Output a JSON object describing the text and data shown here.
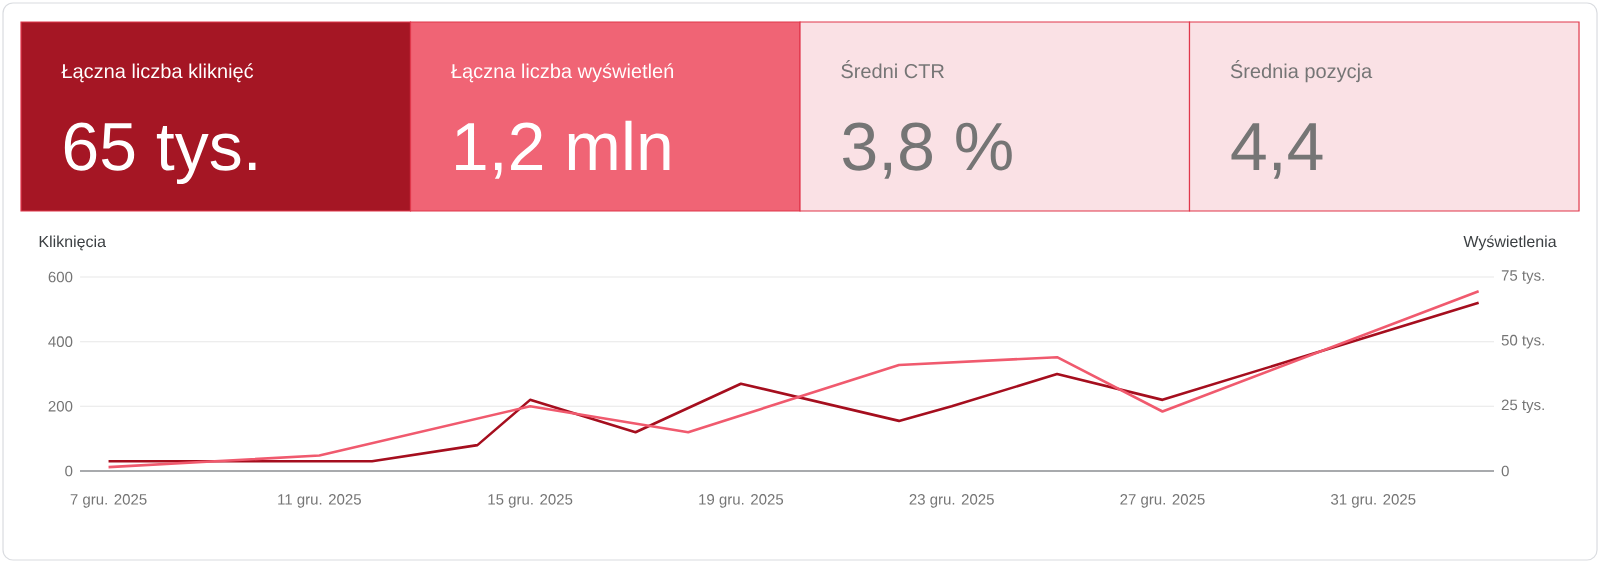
{
  "chart_data": [
    {
      "type": "other",
      "categories": [
        "Łączna liczba kliknięć",
        "Łączna liczba wyświetleń",
        "Średni CTR",
        "Średnia pozycja"
      ],
      "value_labels": [
        "65 tys.",
        "1,2 mln",
        "3,8 %",
        "4,4"
      ],
      "colors": [
        "#a51624",
        "#f06475",
        "#fae1e5",
        "#fae1e5"
      ]
    },
    {
      "type": "line",
      "ylabel": "Kliknięcia",
      "y2label": "Wyświetlenia",
      "xlim": [
        "2025-12-06T11:00",
        "2026-01-02T07:00"
      ],
      "xticks": [
        {
          "value": "2025-12-07",
          "label": "7 gru. 2025"
        },
        {
          "value": "2025-12-11",
          "label": "11 gru. 2025"
        },
        {
          "value": "2025-12-15",
          "label": "15 gru. 2025"
        },
        {
          "value": "2025-12-19",
          "label": "19 gru. 2025"
        },
        {
          "value": "2025-12-23",
          "label": "23 gru. 2025"
        },
        {
          "value": "2025-12-27",
          "label": "27 gru. 2025"
        },
        {
          "value": "2025-12-31",
          "label": "31 gru. 2025"
        }
      ],
      "ylim": [
        0,
        600
      ],
      "yticks": [
        0,
        200,
        400,
        600
      ],
      "y2lim": [
        0,
        75
      ],
      "y2ticks": [
        0,
        {
          "value": 25,
          "label": "25 tys."
        },
        {
          "value": 50,
          "label": "50 tys."
        },
        {
          "value": 75,
          "label": "75 tys."
        }
      ],
      "grid": "y",
      "line_style": "solid",
      "series": [
        {
          "color": "#a50e1e",
          "x": [
            "2025-12-07",
            "2025-12-12",
            "2025-12-14",
            "2025-12-15",
            "2025-12-17",
            "2025-12-19",
            "2025-12-22",
            "2025-12-23",
            "2025-12-25",
            "2025-12-27",
            "2026-01-02"
          ],
          "values": [
            30,
            30,
            80,
            220,
            120,
            270,
            155,
            200,
            300,
            220,
            520
          ]
        },
        {
          "color": "#f05a6e",
          "axis": "y2",
          "x": [
            "2025-12-07",
            "2025-12-11",
            "2025-12-15",
            "2025-12-18",
            "2025-12-22",
            "2025-12-25",
            "2025-12-27",
            "2026-01-02"
          ],
          "values": [
            1.5,
            6,
            25,
            15,
            41,
            44,
            23,
            69.5
          ]
        }
      ]
    }
  ]
}
